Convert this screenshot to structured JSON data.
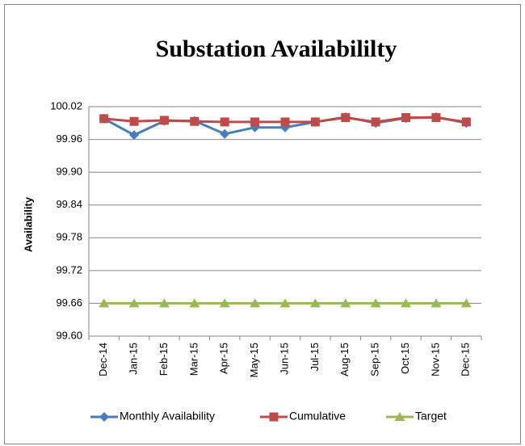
{
  "chart_data": {
    "type": "line",
    "title": "Substation Availabililty",
    "y_label": "Availability",
    "categories": [
      "Dec-14",
      "Jan-15",
      "Feb-15",
      "Mar-15",
      "Apr-15",
      "May-15",
      "Jun-15",
      "Jul-15",
      "Aug-15",
      "Sep-15",
      "Oct-15",
      "Nov-15",
      "Dec-15"
    ],
    "series": [
      {
        "name": "Monthly Availability",
        "color": "#4a7ebb",
        "marker": "diamond",
        "values": [
          99.998,
          99.968,
          99.994,
          99.994,
          99.97,
          99.982,
          99.982,
          99.992,
          100.001,
          99.99,
          99.999,
          100.001,
          99.99
        ]
      },
      {
        "name": "Cumulative",
        "color": "#be4b48",
        "marker": "square",
        "values": [
          99.998,
          99.993,
          99.995,
          99.993,
          99.992,
          99.992,
          99.992,
          99.992,
          100.0,
          99.992,
          100.0,
          100.0,
          99.992
        ]
      },
      {
        "name": "Target",
        "color": "#98b954",
        "marker": "triangle",
        "values": [
          99.66,
          99.66,
          99.66,
          99.66,
          99.66,
          99.66,
          99.66,
          99.66,
          99.66,
          99.66,
          99.66,
          99.66,
          99.66
        ]
      }
    ],
    "ylim": [
      99.6,
      100.02
    ],
    "yticks": [
      {
        "value": 99.6,
        "label": "99.60"
      },
      99.66,
      99.72,
      99.78,
      99.84,
      {
        "value": 99.9,
        "label": "99.90"
      },
      99.96,
      100.02
    ],
    "grid": true,
    "legend": "bottom"
  }
}
